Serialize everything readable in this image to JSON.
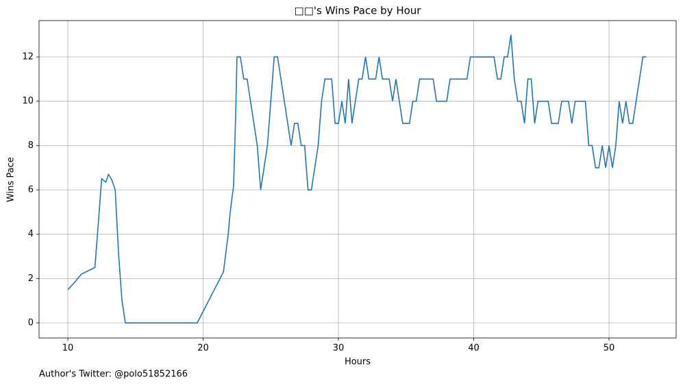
{
  "chart_data": {
    "type": "line",
    "title": "□□'s Wins Pace by Hour",
    "xlabel": "Hours",
    "ylabel": "Wins Pace",
    "footnote": "Author's Twitter: @polo51852166",
    "grid": true,
    "xlim": [
      7.87,
      54.96
    ],
    "ylim": [
      -0.68,
      13.64
    ],
    "xticks": [
      10,
      20,
      30,
      40,
      50
    ],
    "yticks": [
      0,
      2,
      4,
      6,
      8,
      10,
      12
    ],
    "x": [
      10,
      10.5,
      11,
      12,
      12.5,
      12.8,
      13,
      13.25,
      13.5,
      13.75,
      14,
      14.25,
      19.56,
      21.5,
      21.85,
      22,
      22.25,
      22.4,
      22.5,
      22.75,
      23,
      23.25,
      24,
      24.25,
      24.75,
      25,
      25.25,
      25.5,
      26.5,
      26.75,
      27,
      27.25,
      27.5,
      27.75,
      28,
      28.5,
      28.75,
      29,
      29.5,
      29.75,
      30,
      30.25,
      30.5,
      30.75,
      31,
      31.25,
      31.5,
      31.75,
      32,
      32.25,
      32.75,
      33,
      33.25,
      33.75,
      34,
      34.25,
      34.75,
      35.25,
      35.5,
      35.75,
      36,
      37,
      37.25,
      38,
      38.25,
      39.5,
      39.75,
      41.5,
      41.75,
      42,
      42.25,
      42.5,
      42.75,
      43,
      43.25,
      43.5,
      43.75,
      44,
      44.25,
      44.5,
      44.75,
      45.5,
      45.75,
      46.25,
      46.5,
      47,
      47.25,
      47.5,
      48.25,
      48.5,
      48.75,
      49,
      49.25,
      49.5,
      49.75,
      50,
      50.25,
      50.5,
      50.75,
      51,
      51.25,
      51.5,
      51.75,
      52.5,
      52.75
    ],
    "series": [
      {
        "color": "#1f77b4",
        "values": [
          1.5,
          1.83,
          2.2,
          2.5,
          6.5,
          6.35,
          6.7,
          6.45,
          6,
          3.1,
          1,
          0,
          0,
          2.3,
          4,
          5,
          6.2,
          9.3,
          12,
          12,
          11,
          11,
          8,
          6,
          8,
          10,
          12,
          12,
          8,
          9,
          9,
          8,
          8,
          6,
          6,
          8,
          10,
          11,
          11,
          9,
          9,
          10,
          9,
          11,
          9,
          10,
          11,
          11,
          12,
          11,
          11,
          12,
          11,
          11,
          10,
          11,
          9,
          9,
          10,
          10,
          11,
          11,
          10,
          10,
          11,
          11,
          12,
          12,
          11,
          11,
          12,
          12,
          13,
          11,
          10,
          10,
          9,
          11,
          11,
          9,
          10,
          10,
          9,
          9,
          10,
          10,
          9,
          10,
          10,
          8,
          8,
          7,
          7,
          8,
          7,
          8,
          7,
          8,
          10,
          9,
          10,
          9,
          9,
          12,
          12
        ]
      }
    ]
  }
}
